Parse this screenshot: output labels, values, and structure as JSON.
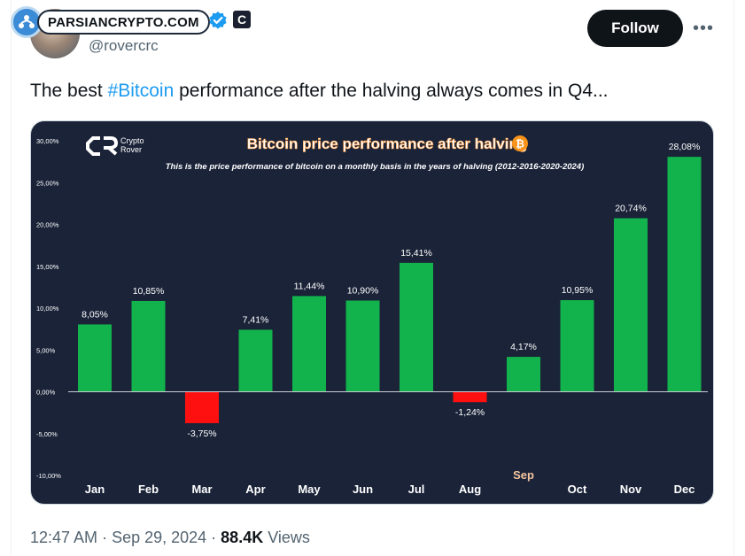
{
  "watermark": {
    "text": "PARSIANCRYPTO.COM"
  },
  "author": {
    "handle": "@rovercrc",
    "badge_letter": "C"
  },
  "actions": {
    "follow_label": "Follow",
    "more_label": "•••"
  },
  "tweet": {
    "text_before": "The best ",
    "hashtag": "#Bitcoin",
    "text_after": " performance after the halving always comes in Q4..."
  },
  "image": {
    "brand_line1": "Crypto",
    "brand_line2": "Rover",
    "title": "Bitcoin price performance after halving",
    "subtitle": "This is the price performance of bitcoin on a monthly basis in the years of halving (2012-2016-2020-2024)"
  },
  "chart_data": {
    "type": "bar",
    "title": "Bitcoin price performance after halving",
    "categories": [
      "Jan",
      "Feb",
      "Mar",
      "Apr",
      "May",
      "Jun",
      "Jul",
      "Aug",
      "Sep",
      "Oct",
      "Nov",
      "Dec"
    ],
    "values": [
      8.05,
      10.85,
      -3.75,
      7.41,
      11.44,
      10.9,
      15.41,
      -1.24,
      4.17,
      10.95,
      20.74,
      28.08
    ],
    "value_labels": [
      "8,05%",
      "10,85%",
      "-3,75%",
      "7,41%",
      "11,44%",
      "10,90%",
      "15,41%",
      "-1,24%",
      "4,17%",
      "10,95%",
      "20,74%",
      "28,08%"
    ],
    "yticks": [
      30,
      25,
      20,
      15,
      10,
      5,
      0,
      -5,
      -10
    ],
    "ytick_labels": [
      "30,00%",
      "25,00%",
      "20,00%",
      "15,00%",
      "10,00%",
      "5,00%",
      "0,00%",
      "-5,00%",
      "-10,00%"
    ],
    "ylim": [
      -10,
      30
    ],
    "highlight_category": "Sep",
    "colors": {
      "positive": "#12b34c",
      "negative": "#ff1010",
      "background": "#1a2338",
      "highlight_label": "#f6c6a0"
    },
    "grid": false,
    "xlabel": "",
    "ylabel": ""
  },
  "footer": {
    "time": "12:47 AM",
    "sep": " · ",
    "date": "Sep 29, 2024",
    "sep2": " · ",
    "views_count": "88.4K",
    "views_label": " Views"
  }
}
